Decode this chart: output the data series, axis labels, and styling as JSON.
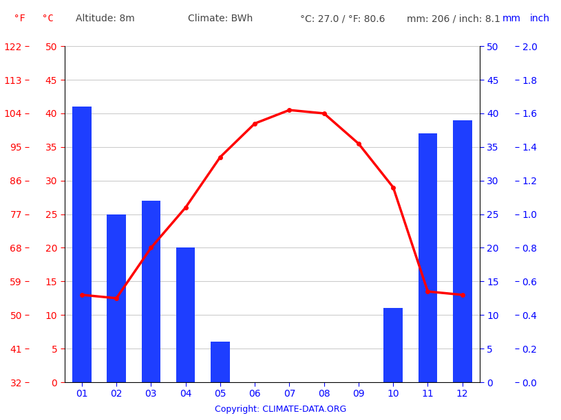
{
  "months": [
    "01",
    "02",
    "03",
    "04",
    "05",
    "06",
    "07",
    "08",
    "09",
    "10",
    "11",
    "12"
  ],
  "precipitation_mm": [
    41,
    25,
    27,
    20,
    6,
    0,
    0,
    0,
    0,
    11,
    37,
    39
  ],
  "temperature_c": [
    13,
    12.5,
    20,
    26,
    33.5,
    38.5,
    40.5,
    40,
    35.5,
    29,
    13.5,
    13
  ],
  "bar_color": "#1e3eff",
  "line_color": "#ff0000",
  "line_width": 2.5,
  "marker": "o",
  "marker_size": 4,
  "copyright": "Copyright: CLIMATE-DATA.ORG",
  "temp_ticks_c": [
    0,
    5,
    10,
    15,
    20,
    25,
    30,
    35,
    40,
    45,
    50
  ],
  "temp_ticks_f": [
    32,
    41,
    50,
    59,
    68,
    77,
    86,
    95,
    104,
    113,
    122
  ],
  "precip_ticks_mm": [
    0,
    5,
    10,
    15,
    20,
    25,
    30,
    35,
    40,
    45,
    50
  ],
  "precip_ticks_inch": [
    0.0,
    0.2,
    0.4,
    0.6,
    0.8,
    1.0,
    1.2,
    1.4,
    1.6,
    1.8,
    2.0
  ],
  "background_color": "#ffffff",
  "grid_color": "#cccccc",
  "header_color": "#444444",
  "red_color": "#ff0000",
  "blue_color": "#0000ff"
}
